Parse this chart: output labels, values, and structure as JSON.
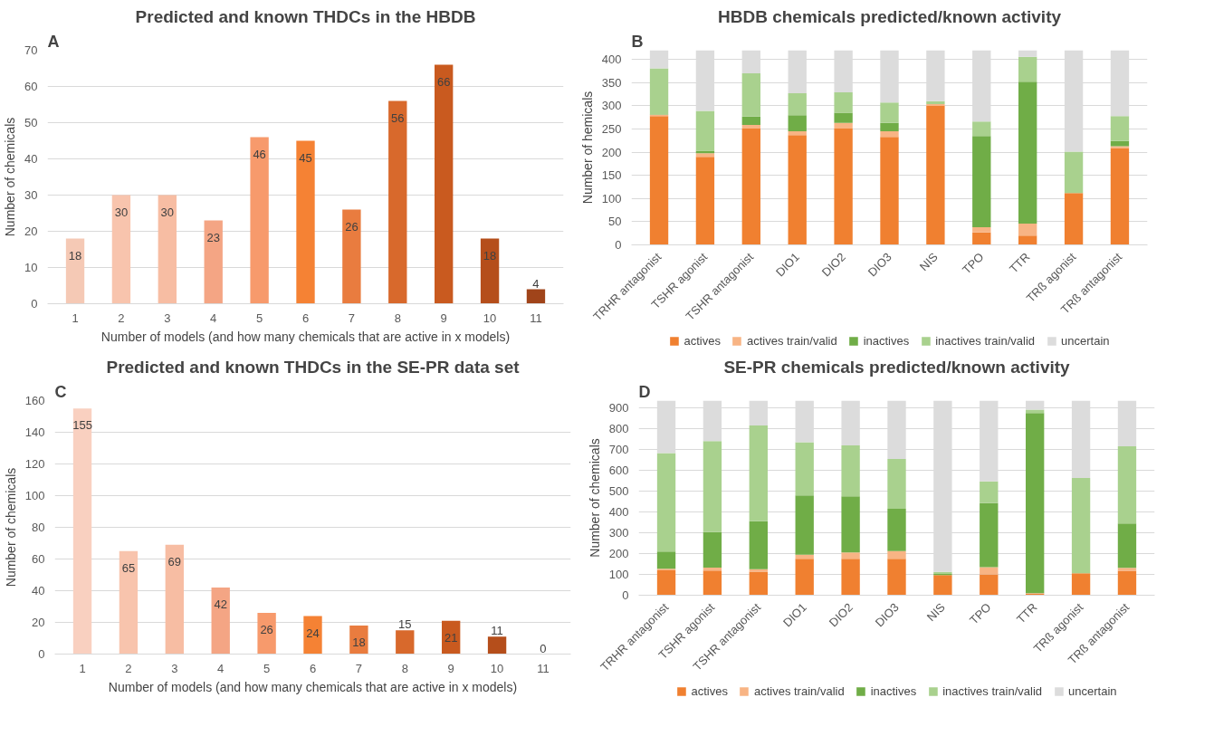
{
  "chart_data": [
    {
      "type": "bar",
      "title": "Predicted and known THDCs in the HBDB",
      "xlabel": "Number of models (and how many chemicals that are active in x models)",
      "ylabel": "Number of chemicals",
      "annotations": [
        "A"
      ],
      "categories": [
        "1",
        "2",
        "3",
        "4",
        "5",
        "6",
        "7",
        "8",
        "9",
        "10",
        "11"
      ],
      "values": [
        18,
        30,
        30,
        23,
        46,
        45,
        26,
        56,
        66,
        18,
        4
      ],
      "colors": [
        "#f5c9b5",
        "#f8c4ad",
        "#f7bda3",
        "#f4a584",
        "#f79a6c",
        "#f58234",
        "#e97c3f",
        "#d8692c",
        "#c95a1f",
        "#b54e1b",
        "#a0441a"
      ],
      "ylim": [
        0,
        70
      ],
      "yticks": [
        0,
        10,
        20,
        30,
        40,
        50,
        60,
        70
      ],
      "grid": "y",
      "data_labels": true
    },
    {
      "type": "bar",
      "title": "HBDB chemicals predicted/known activity",
      "ylabel": "Number of hemicals",
      "annotations": [
        "B"
      ],
      "stacked": true,
      "legend": "bottom",
      "grid": "y",
      "categories": [
        "TRHR antagonist",
        "TSHR agonist",
        "TSHR antagonist",
        "DIO1",
        "DIO2",
        "DIO3",
        "NIS",
        "TPO",
        "TTR",
        "TRß agonist",
        "TRß antagonist"
      ],
      "series": [
        {
          "name": "actives",
          "color": "#f08030",
          "values": [
            278,
            190,
            251,
            237,
            251,
            233,
            300,
            27,
            20,
            112,
            209
          ]
        },
        {
          "name": "actives train/valid",
          "color": "#f8b484",
          "values": [
            3,
            8,
            8,
            8,
            12,
            12,
            4,
            11,
            26,
            0,
            4
          ]
        },
        {
          "name": "inactives",
          "color": "#70ad47",
          "values": [
            1,
            5,
            18,
            35,
            22,
            18,
            0,
            197,
            306,
            0,
            11
          ]
        },
        {
          "name": "inactives train/valid",
          "color": "#a9d18e",
          "values": [
            99,
            86,
            93,
            47,
            44,
            44,
            6,
            31,
            54,
            89,
            54
          ]
        },
        {
          "name": "uncertain",
          "color": "#dcdcdc",
          "values": [
            39,
            131,
            50,
            93,
            91,
            113,
            110,
            154,
            14,
            219,
            142
          ]
        }
      ],
      "ylim": [
        0,
        420
      ],
      "yticks": [
        0,
        50,
        100,
        150,
        200,
        250,
        300,
        350,
        400
      ]
    },
    {
      "type": "bar",
      "title": "Predicted and known THDCs in the SE-PR data set",
      "xlabel": "Number of models (and how many chemicals that are active in x models)",
      "ylabel": "Number of chemicals",
      "annotations": [
        "C"
      ],
      "categories": [
        "1",
        "2",
        "3",
        "4",
        "5",
        "6",
        "7",
        "8",
        "9",
        "10",
        "11"
      ],
      "values": [
        155,
        65,
        69,
        42,
        26,
        24,
        18,
        15,
        21,
        11,
        0
      ],
      "colors": [
        "#f9d0c0",
        "#f8c4ad",
        "#f7bda3",
        "#f4a584",
        "#f79a6c",
        "#f58234",
        "#e97c3f",
        "#d8692c",
        "#c95a1f",
        "#b54e1b",
        "#a0441a"
      ],
      "ylim": [
        0,
        160
      ],
      "yticks": [
        0,
        20,
        40,
        60,
        80,
        100,
        120,
        140,
        160
      ],
      "grid": "y",
      "data_labels": true
    },
    {
      "type": "bar",
      "title": "SE-PR chemicals predicted/known activity",
      "ylabel": "Number of chemicals",
      "annotations": [
        "D"
      ],
      "stacked": true,
      "legend": "bottom",
      "grid": "y",
      "categories": [
        "TRHR antagonist",
        "TSHR agonist",
        "TSHR antagonist",
        "DIO1",
        "DIO2",
        "DIO3",
        "NIS",
        "TPO",
        "TTR",
        "TRß agonist",
        "TRß antagonist"
      ],
      "series": [
        {
          "name": "actives",
          "color": "#f08030",
          "values": [
            120,
            118,
            113,
            175,
            175,
            175,
            97,
            100,
            8,
            105,
            117
          ]
        },
        {
          "name": "actives train/valid",
          "color": "#f8b484",
          "values": [
            7,
            15,
            12,
            20,
            30,
            37,
            0,
            35,
            2,
            0,
            15
          ]
        },
        {
          "name": "inactives",
          "color": "#70ad47",
          "values": [
            83,
            170,
            230,
            285,
            270,
            203,
            5,
            307,
            865,
            0,
            213
          ]
        },
        {
          "name": "inactives train/valid",
          "color": "#a9d18e",
          "values": [
            473,
            437,
            460,
            255,
            245,
            240,
            10,
            105,
            17,
            458,
            370
          ]
        },
        {
          "name": "uncertain",
          "color": "#dcdcdc",
          "values": [
            252,
            195,
            120,
            200,
            215,
            280,
            823,
            388,
            43,
            372,
            220
          ]
        }
      ],
      "ylim": [
        0,
        935
      ],
      "yticks": [
        0,
        100,
        200,
        300,
        400,
        500,
        600,
        700,
        800,
        900
      ]
    }
  ]
}
